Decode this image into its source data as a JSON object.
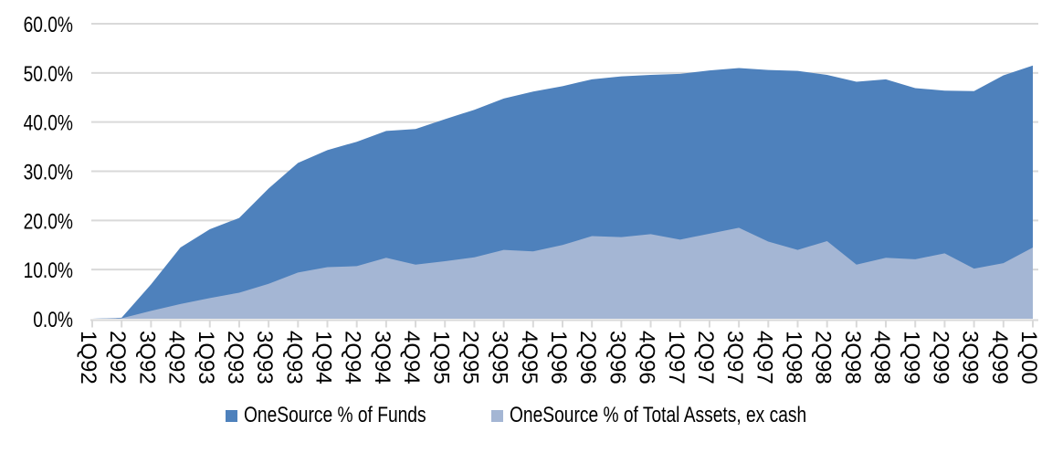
{
  "chart_data": {
    "type": "area",
    "mode": "overlapping",
    "title": "",
    "categories": [
      "1Q92",
      "2Q92",
      "3Q92",
      "4Q92",
      "1Q93",
      "2Q93",
      "3Q93",
      "4Q93",
      "1Q94",
      "2Q94",
      "3Q94",
      "4Q94",
      "1Q95",
      "2Q95",
      "3Q95",
      "4Q95",
      "1Q96",
      "2Q96",
      "3Q96",
      "4Q96",
      "1Q97",
      "2Q97",
      "3Q97",
      "4Q97",
      "1Q98",
      "2Q98",
      "3Q98",
      "4Q98",
      "1Q99",
      "2Q99",
      "3Q99",
      "4Q99",
      "1Q00"
    ],
    "series": [
      {
        "name": "OneSource % of Funds",
        "color": "#4e81bc",
        "values": [
          0.0,
          0.2,
          7.0,
          14.5,
          18.2,
          20.5,
          26.5,
          31.7,
          34.3,
          36.0,
          38.2,
          38.6,
          40.6,
          42.5,
          44.8,
          46.2,
          47.3,
          48.7,
          49.3,
          49.6,
          49.8,
          50.5,
          51.0,
          50.6,
          50.4,
          49.6,
          48.2,
          48.7,
          46.9,
          46.4,
          46.3,
          49.5,
          51.5
        ]
      },
      {
        "name": "OneSource % of Total Assets, ex cash",
        "color": "#a4b6d4",
        "values": [
          0.0,
          0.1,
          1.6,
          3.0,
          4.2,
          5.3,
          7.1,
          9.4,
          10.5,
          10.7,
          12.4,
          11.0,
          11.7,
          12.5,
          14.0,
          13.7,
          15.0,
          16.8,
          16.6,
          17.2,
          16.1,
          17.3,
          18.5,
          15.7,
          14.0,
          15.8,
          11.0,
          12.4,
          12.1,
          13.3,
          10.2,
          11.3,
          14.5
        ]
      }
    ],
    "y_axis": {
      "min": 0,
      "max": 60,
      "step": 10,
      "tick_labels": [
        "0.0%",
        "10.0%",
        "20.0%",
        "30.0%",
        "40.0%",
        "50.0%",
        "60.0%"
      ],
      "format": "0.0%"
    },
    "x_axis": {
      "label_rotation_degrees": 90,
      "tick_marks": "at_each_category"
    },
    "grid": true,
    "gridline_color": "#d9d9d9",
    "axis_color": "#d9d9d9",
    "background": "#ffffff",
    "legend_position": "bottom"
  }
}
